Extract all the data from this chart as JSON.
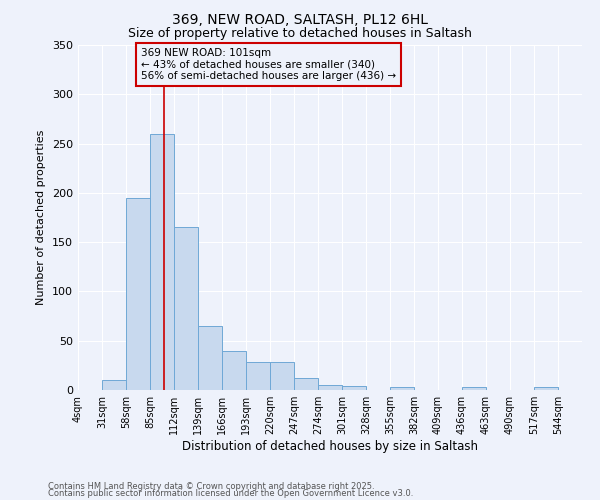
{
  "title1": "369, NEW ROAD, SALTASH, PL12 6HL",
  "title2": "Size of property relative to detached houses in Saltash",
  "xlabel": "Distribution of detached houses by size in Saltash",
  "ylabel": "Number of detached properties",
  "bin_labels": [
    "4sqm",
    "31sqm",
    "58sqm",
    "85sqm",
    "112sqm",
    "139sqm",
    "166sqm",
    "193sqm",
    "220sqm",
    "247sqm",
    "274sqm",
    "301sqm",
    "328sqm",
    "355sqm",
    "382sqm",
    "409sqm",
    "436sqm",
    "463sqm",
    "490sqm",
    "517sqm",
    "544sqm"
  ],
  "bin_edges": [
    4,
    31,
    58,
    85,
    112,
    139,
    166,
    193,
    220,
    247,
    274,
    301,
    328,
    355,
    382,
    409,
    436,
    463,
    490,
    517,
    544
  ],
  "bar_heights": [
    0,
    10,
    195,
    260,
    165,
    65,
    40,
    28,
    28,
    12,
    5,
    4,
    0,
    3,
    0,
    0,
    3,
    0,
    0,
    3,
    0
  ],
  "bar_color": "#c8d9ee",
  "bar_edge_color": "#6fa8d6",
  "vline_x": 101,
  "vline_color": "#cc0000",
  "annotation_text": "369 NEW ROAD: 101sqm\n← 43% of detached houses are smaller (340)\n56% of semi-detached houses are larger (436) →",
  "annotation_box_color": "#cc0000",
  "ylim": [
    0,
    350
  ],
  "yticks": [
    0,
    50,
    100,
    150,
    200,
    250,
    300,
    350
  ],
  "background_color": "#eef2fb",
  "grid_color": "#ffffff",
  "footer1": "Contains HM Land Registry data © Crown copyright and database right 2025.",
  "footer2": "Contains public sector information licensed under the Open Government Licence v3.0."
}
